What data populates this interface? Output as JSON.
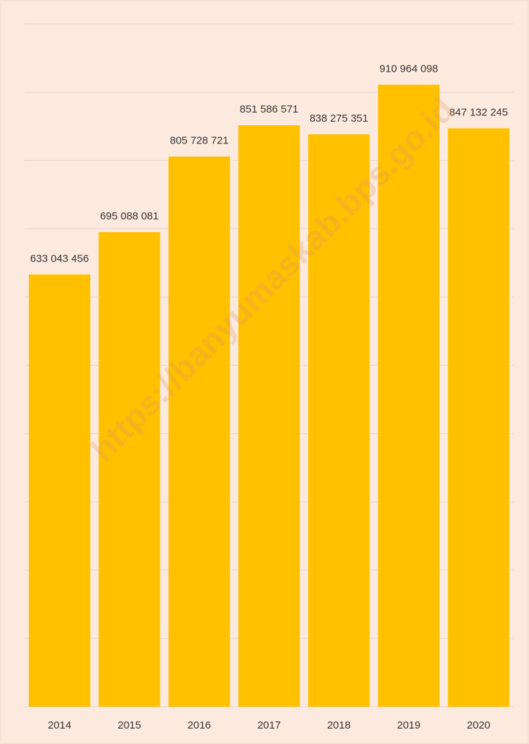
{
  "chart_data": {
    "type": "bar",
    "categories": [
      "2014",
      "2015",
      "2016",
      "2017",
      "2018",
      "2019",
      "2020"
    ],
    "values": [
      633043456,
      695088081,
      805728721,
      851586571,
      838275351,
      910964098,
      847132245
    ],
    "value_labels": [
      "633 043 456",
      "695 088 081",
      "805 728 721",
      "851 586 571",
      "838 275 351",
      "910 964 098",
      "847 132 245"
    ],
    "color": "#ffc000",
    "ylim": [
      0,
      1000000000
    ],
    "yticks": [
      0,
      100000000,
      200000000,
      300000000,
      400000000,
      500000000,
      600000000,
      700000000,
      800000000,
      900000000,
      1000000000
    ],
    "grid": true,
    "watermark": "https://banyumaskab.bps.go.id"
  }
}
